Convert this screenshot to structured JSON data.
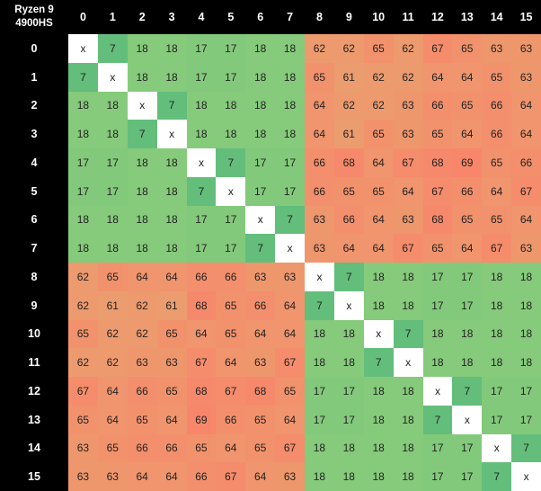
{
  "chart_data": {
    "type": "heatmap",
    "corner_label": [
      "Ryzen 9",
      "4900HS"
    ],
    "columns": [
      "0",
      "1",
      "2",
      "3",
      "4",
      "5",
      "6",
      "7",
      "8",
      "9",
      "10",
      "11",
      "12",
      "13",
      "14",
      "15"
    ],
    "rows": [
      "0",
      "1",
      "2",
      "3",
      "4",
      "5",
      "6",
      "7",
      "8",
      "9",
      "10",
      "11",
      "12",
      "13",
      "14",
      "15"
    ],
    "values": [
      [
        "x",
        "7",
        "18",
        "18",
        "17",
        "17",
        "18",
        "18",
        "62",
        "62",
        "65",
        "62",
        "67",
        "65",
        "63",
        "63"
      ],
      [
        "7",
        "x",
        "18",
        "18",
        "17",
        "17",
        "18",
        "18",
        "65",
        "61",
        "62",
        "62",
        "64",
        "64",
        "65",
        "63"
      ],
      [
        "18",
        "18",
        "x",
        "7",
        "18",
        "18",
        "18",
        "18",
        "64",
        "62",
        "62",
        "63",
        "66",
        "65",
        "66",
        "64"
      ],
      [
        "18",
        "18",
        "7",
        "x",
        "18",
        "18",
        "18",
        "18",
        "64",
        "61",
        "65",
        "63",
        "65",
        "64",
        "66",
        "64"
      ],
      [
        "17",
        "17",
        "18",
        "18",
        "x",
        "7",
        "17",
        "17",
        "66",
        "68",
        "64",
        "67",
        "68",
        "69",
        "65",
        "66"
      ],
      [
        "17",
        "17",
        "18",
        "18",
        "7",
        "x",
        "17",
        "17",
        "66",
        "65",
        "65",
        "64",
        "67",
        "66",
        "64",
        "67"
      ],
      [
        "18",
        "18",
        "18",
        "18",
        "17",
        "17",
        "x",
        "7",
        "63",
        "66",
        "64",
        "63",
        "68",
        "65",
        "65",
        "64"
      ],
      [
        "18",
        "18",
        "18",
        "18",
        "17",
        "17",
        "7",
        "x",
        "63",
        "64",
        "64",
        "67",
        "65",
        "64",
        "67",
        "63"
      ],
      [
        "62",
        "65",
        "64",
        "64",
        "66",
        "66",
        "63",
        "63",
        "x",
        "7",
        "18",
        "18",
        "17",
        "17",
        "18",
        "18"
      ],
      [
        "62",
        "61",
        "62",
        "61",
        "68",
        "65",
        "66",
        "64",
        "7",
        "x",
        "18",
        "18",
        "17",
        "17",
        "18",
        "18"
      ],
      [
        "65",
        "62",
        "62",
        "65",
        "64",
        "65",
        "64",
        "64",
        "18",
        "18",
        "x",
        "7",
        "18",
        "18",
        "18",
        "18"
      ],
      [
        "62",
        "62",
        "63",
        "63",
        "67",
        "64",
        "63",
        "67",
        "18",
        "18",
        "7",
        "x",
        "18",
        "18",
        "18",
        "18"
      ],
      [
        "67",
        "64",
        "66",
        "65",
        "68",
        "67",
        "68",
        "65",
        "17",
        "17",
        "18",
        "18",
        "x",
        "7",
        "17",
        "17"
      ],
      [
        "65",
        "64",
        "65",
        "64",
        "69",
        "66",
        "65",
        "64",
        "17",
        "17",
        "18",
        "18",
        "7",
        "x",
        "17",
        "17"
      ],
      [
        "63",
        "65",
        "66",
        "66",
        "65",
        "64",
        "65",
        "67",
        "18",
        "18",
        "18",
        "18",
        "17",
        "17",
        "x",
        "7"
      ],
      [
        "63",
        "63",
        "64",
        "64",
        "66",
        "67",
        "64",
        "63",
        "18",
        "18",
        "18",
        "18",
        "17",
        "17",
        "7",
        "x"
      ]
    ],
    "colors": {
      "diagonal": "#ffffff",
      "low": "#63be7b",
      "mid": "#c6e07c",
      "high": "#f8866a",
      "header_bg": "#000000",
      "header_text": "#ffffff"
    }
  }
}
